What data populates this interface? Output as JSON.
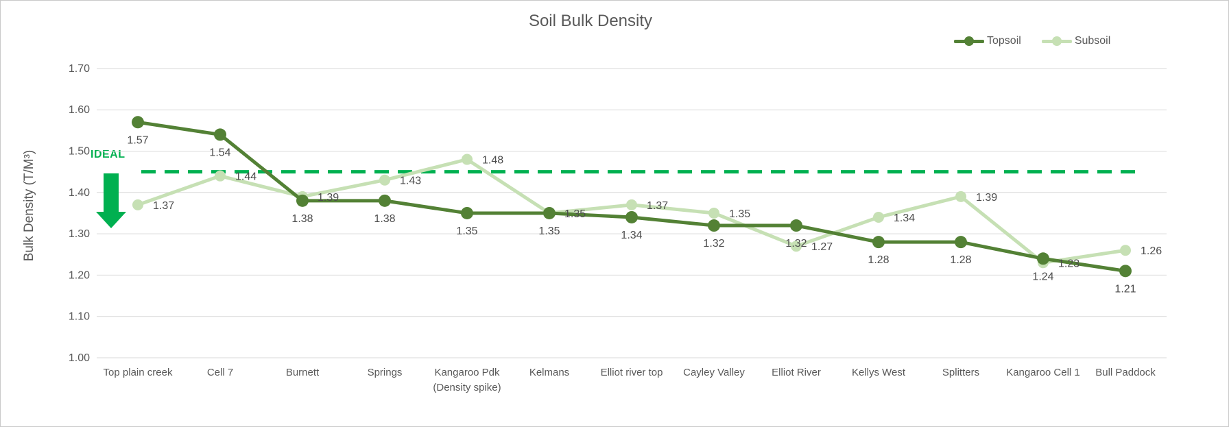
{
  "title": "Soil Bulk Density",
  "y_axis": {
    "title": "Bulk Density (T/M³)"
  },
  "ideal": {
    "label": "IDEAL",
    "value": 1.45,
    "color": "#00b050"
  },
  "legend": [
    {
      "name": "Topsoil",
      "color": "#538135"
    },
    {
      "name": "Subsoil",
      "color": "#c6e0b4"
    }
  ],
  "colors": {
    "topsoil": "#538135",
    "subsoil": "#c6e0b4",
    "ideal_green": "#00b050",
    "gridline": "#d9d9d9",
    "axis_text": "#595959",
    "data_label_text": "#4c4c4c"
  },
  "chart_data": {
    "type": "line",
    "title": "Soil Bulk Density",
    "ylabel": "Bulk Density (T/M³)",
    "xlabel": "",
    "ylim": [
      1.0,
      1.7
    ],
    "ytick_step": 0.1,
    "ytick_format_decimals": 2,
    "grid": true,
    "legend_position": "top-right",
    "categories": [
      "Top plain creek",
      "Cell 7",
      "Burnett",
      "Springs",
      "Kangaroo Pdk\n(Density spike)",
      "Kelmans",
      "Elliot river top",
      "Cayley Valley",
      "Elliot River",
      "Kellys West",
      "Splitters",
      "Kangaroo Cell 1",
      "Bull Paddock"
    ],
    "series": [
      {
        "name": "Topsoil",
        "color": "#538135",
        "marker": "circle",
        "label_position": "below",
        "values": [
          1.57,
          1.54,
          1.38,
          1.38,
          1.35,
          1.35,
          1.34,
          1.32,
          1.32,
          1.28,
          1.28,
          1.24,
          1.21
        ]
      },
      {
        "name": "Subsoil",
        "color": "#c6e0b4",
        "marker": "circle",
        "label_position": "right",
        "values": [
          1.37,
          1.44,
          1.39,
          1.43,
          1.48,
          1.35,
          1.37,
          1.35,
          1.27,
          1.34,
          1.39,
          1.23,
          1.26
        ]
      }
    ],
    "annotations": {
      "ideal_line": {
        "value": 1.45,
        "label": "IDEAL",
        "color": "#00b050",
        "style": "dashed"
      },
      "arrow": {
        "direction": "down",
        "color": "#00b050"
      }
    }
  }
}
